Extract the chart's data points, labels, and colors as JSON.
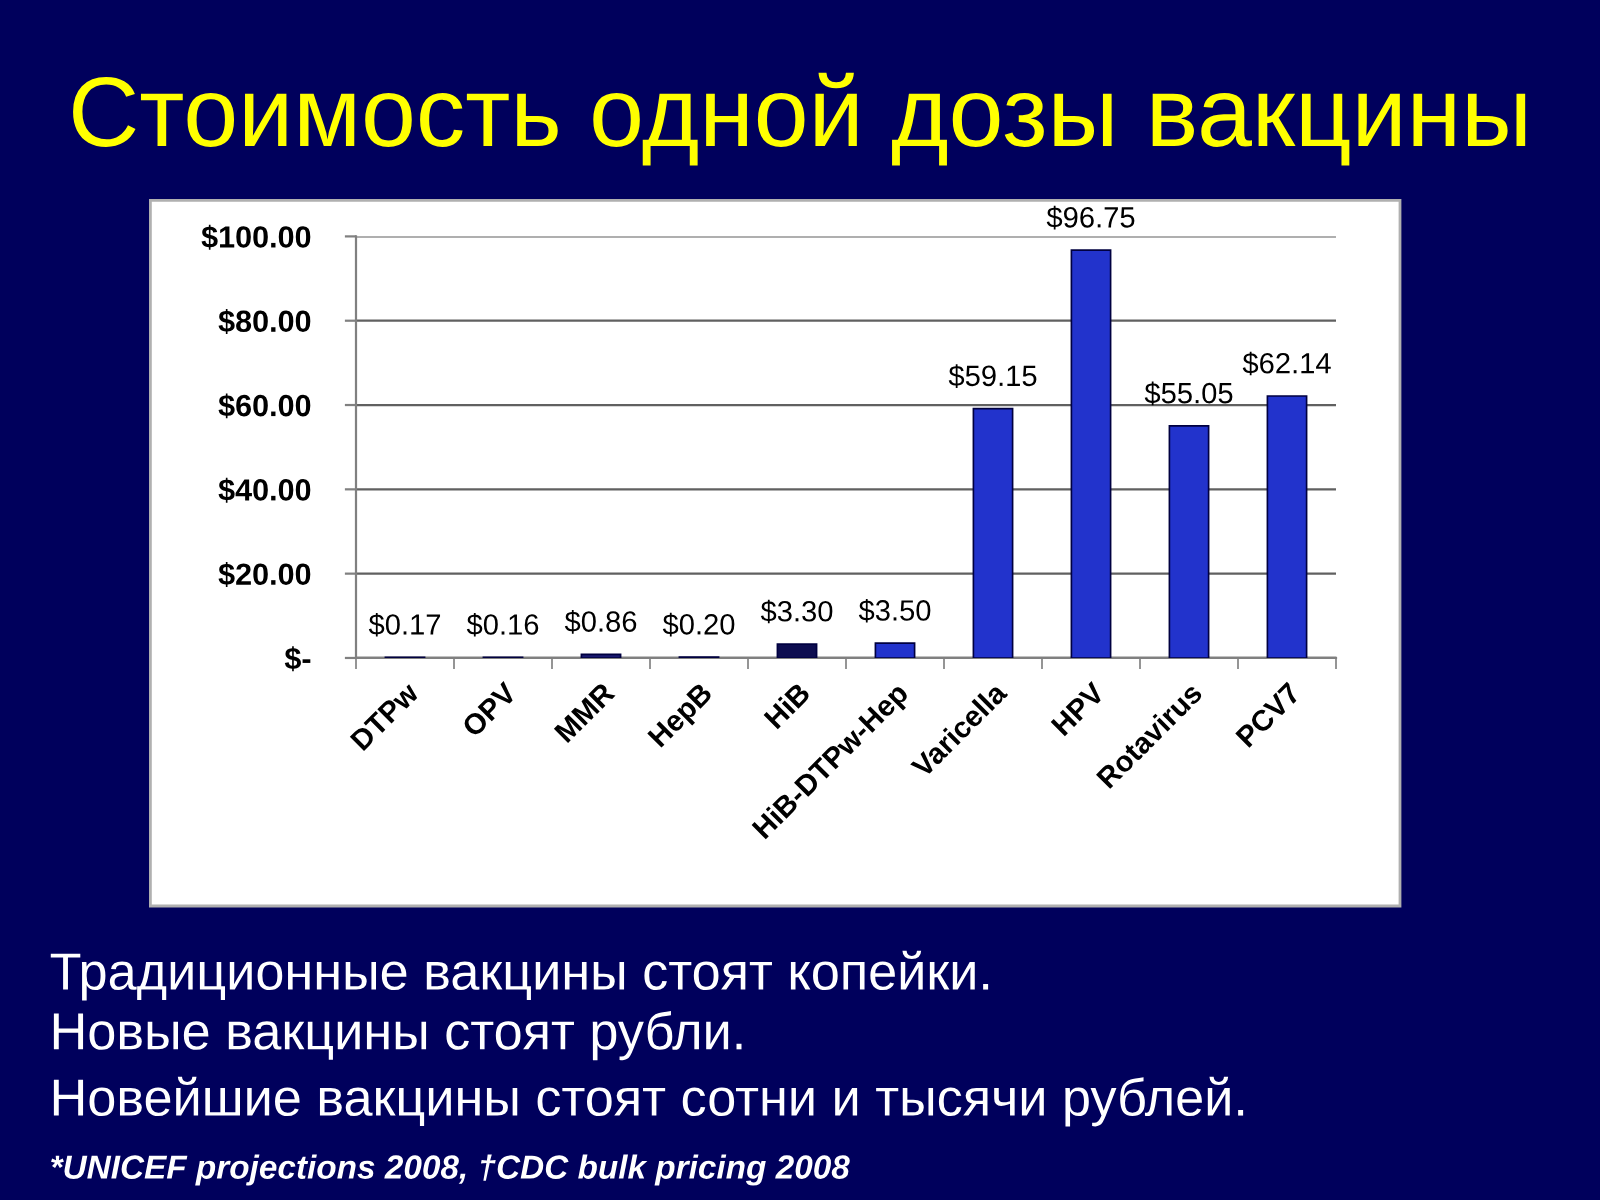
{
  "chart_data": {
    "type": "bar",
    "title": "Стоимость одной дозы вакцины",
    "categories": [
      "DTPw",
      "OPV",
      "MMR",
      "HepB",
      "HiB",
      "HiB-DTPw-Hep",
      "Varicella",
      "HPV",
      "Rotavirus",
      "PCV7"
    ],
    "values": [
      0.17,
      0.16,
      0.86,
      0.2,
      3.3,
      3.5,
      59.15,
      96.75,
      55.05,
      62.14
    ],
    "value_labels": [
      "$0.17",
      "$0.16",
      "$0.86",
      "$0.20",
      "$3.30",
      "$3.50",
      "$59.15",
      "$96.75",
      "$55.05",
      "$62.14"
    ],
    "colors": [
      "#2233cc",
      "#2233cc",
      "#1a1a70",
      "#2233cc",
      "#0d0d50",
      "#2233cc",
      "#2233cc",
      "#2233cc",
      "#2233cc",
      "#2233cc"
    ],
    "ylim": [
      0,
      100
    ],
    "yticks": [
      {
        "value": 0,
        "label": "$-"
      },
      {
        "value": 20,
        "label": "$20.00"
      },
      {
        "value": 40,
        "label": "$40.00"
      },
      {
        "value": 60,
        "label": "$60.00"
      },
      {
        "value": 80,
        "label": "$80.00"
      },
      {
        "value": 100,
        "label": "$100.00"
      }
    ],
    "grid": "y",
    "annotations": [
      "Традиционные вакцины стоят копейки.",
      "Новые вакцины стоят рубли.",
      "Новейшие вакцины стоят сотни и тысячи рублей.",
      "*UNICEF projections 2008, †CDC bulk pricing 2008"
    ]
  }
}
